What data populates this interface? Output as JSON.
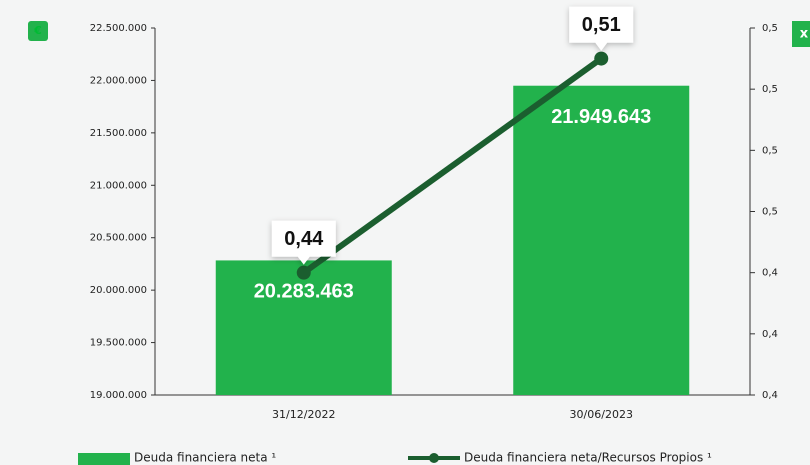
{
  "chart_data": {
    "type": "bar",
    "y_label": "€",
    "y2_label": "x",
    "categories": [
      "31/12/2022",
      "30/06/2023"
    ],
    "series": [
      {
        "name": "Deuda financiera neta ¹",
        "type": "bar",
        "color": "#22b24c",
        "values": [
          20283463,
          21949643
        ],
        "value_labels": [
          "20.283.463",
          "21.949.643"
        ]
      },
      {
        "name": "Deuda financiera neta/Recursos Propios ¹",
        "type": "line",
        "axis": "y2",
        "color": "#1b5e2f",
        "values": [
          0.44,
          0.51
        ],
        "value_labels": [
          "0,44",
          "0,51"
        ]
      }
    ],
    "ylim": [
      19000000,
      22500000
    ],
    "yticks": [
      {
        "value": 19000000,
        "label": "19.000.000"
      },
      {
        "value": 19500000,
        "label": "19.500.000"
      },
      {
        "value": 20000000,
        "label": "20.000.000"
      },
      {
        "value": 20500000,
        "label": "20.500.000"
      },
      {
        "value": 21000000,
        "label": "21.000.000"
      },
      {
        "value": 21500000,
        "label": "21.500.000"
      },
      {
        "value": 22000000,
        "label": "22.000.000"
      },
      {
        "value": 22500000,
        "label": "22.500.000"
      }
    ],
    "y2lim": [
      0.4,
      0.52
    ],
    "y2ticks": [
      {
        "value": 0.4,
        "label": "0,4"
      },
      {
        "value": 0.42,
        "label": "0,4"
      },
      {
        "value": 0.44,
        "label": "0,4"
      },
      {
        "value": 0.46,
        "label": "0,5"
      },
      {
        "value": 0.48,
        "label": "0,5"
      },
      {
        "value": 0.5,
        "label": "0,5"
      },
      {
        "value": 0.52,
        "label": "0,5"
      }
    ],
    "legend": "bottom"
  }
}
